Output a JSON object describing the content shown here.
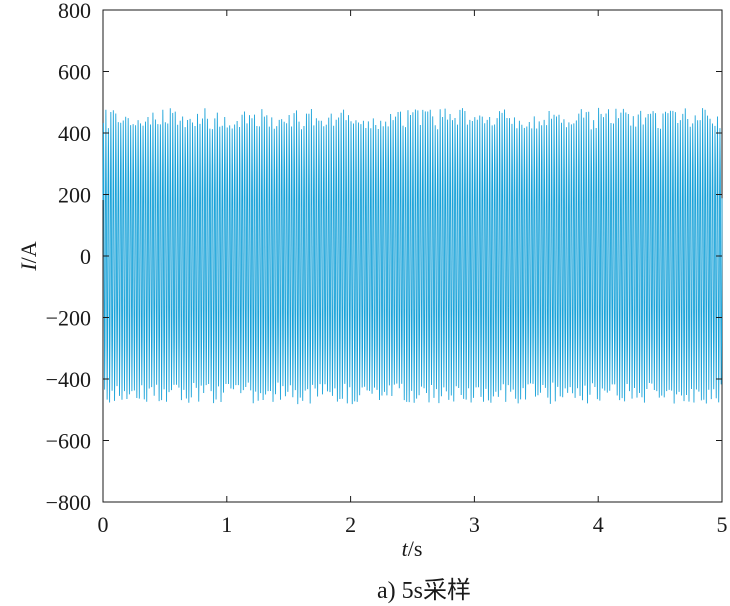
{
  "chart_data": {
    "type": "line",
    "xlabel": {
      "var": "t",
      "unit": "/s"
    },
    "ylabel": {
      "var": "I",
      "unit": "/A"
    },
    "xlim": [
      0,
      5
    ],
    "ylim": [
      -800,
      800
    ],
    "xticks": [
      0,
      1,
      2,
      3,
      4,
      5
    ],
    "yticks": [
      800,
      600,
      400,
      200,
      0,
      -200,
      -400,
      -600,
      -800
    ],
    "ytick_labels": [
      "800",
      "600",
      "400",
      "200",
      "0",
      "−200",
      "−400",
      "−600",
      "−800"
    ],
    "grid": false,
    "series": [
      {
        "color": "#1aa3d9",
        "waveform": "sinusoid-with-noise",
        "frequency_hz": 50,
        "amplitude_peak": 450,
        "envelope_range": [
          -490,
          510
        ],
        "x_range": [
          0,
          5
        ]
      }
    ],
    "caption": "a) 5s采样"
  }
}
